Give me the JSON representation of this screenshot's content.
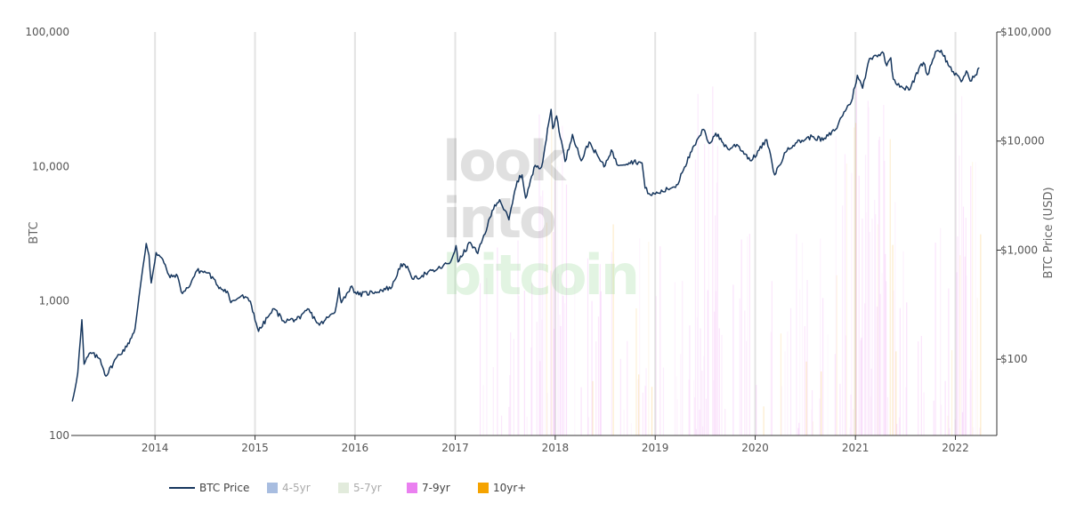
{
  "chart_data": {
    "type": "line",
    "title": "",
    "watermark": [
      "look",
      "into",
      "bitcoin"
    ],
    "left_axis": {
      "label": "BTC",
      "scale": "log",
      "range": [
        100,
        100000
      ],
      "ticks": [
        {
          "value": 100,
          "label": "100"
        },
        {
          "value": 1000,
          "label": "1,000"
        },
        {
          "value": 10000,
          "label": "10,000"
        },
        {
          "value": 100000,
          "label": "100,000"
        }
      ]
    },
    "right_axis": {
      "label": "BTC Price (USD)",
      "scale": "log",
      "range": [
        20,
        100000
      ],
      "ticks": [
        {
          "value": 100,
          "label": "$100"
        },
        {
          "value": 1000,
          "label": "$1,000"
        },
        {
          "value": 10000,
          "label": "$10,000"
        },
        {
          "value": 100000,
          "label": "$100,000"
        }
      ]
    },
    "x_axis": {
      "type": "date",
      "range": [
        "2013-03-01",
        "2022-06-01"
      ],
      "ticks": [
        "2014",
        "2015",
        "2016",
        "2017",
        "2018",
        "2019",
        "2020",
        "2021",
        "2022"
      ],
      "grid": true
    },
    "legend": {
      "placement": "bottom",
      "items": [
        {
          "name": "BTC Price",
          "type": "line",
          "color": "#17375e",
          "active": true
        },
        {
          "name": "4-5yr",
          "type": "box",
          "color": "#a8bde0",
          "active": false
        },
        {
          "name": "5-7yr",
          "type": "box",
          "color": "#e2ebdc",
          "active": false
        },
        {
          "name": "7-9yr",
          "type": "box",
          "color": "#ea80f0",
          "active": true
        },
        {
          "name": "10yr+",
          "type": "box",
          "color": "#f5a300",
          "active": true
        }
      ]
    },
    "series": [
      {
        "name": "BTC Price",
        "axis": "right",
        "color": "#17375e",
        "points": [
          [
            "2013-03-05",
            41
          ],
          [
            "2013-03-25",
            75
          ],
          [
            "2013-04-09",
            230
          ],
          [
            "2013-04-17",
            90
          ],
          [
            "2013-05-10",
            115
          ],
          [
            "2013-06-15",
            100
          ],
          [
            "2013-07-06",
            70
          ],
          [
            "2013-08-15",
            105
          ],
          [
            "2013-09-20",
            130
          ],
          [
            "2013-10-20",
            190
          ],
          [
            "2013-11-18",
            700
          ],
          [
            "2013-11-30",
            1150
          ],
          [
            "2013-12-10",
            900
          ],
          [
            "2013-12-18",
            500
          ],
          [
            "2014-01-05",
            950
          ],
          [
            "2014-01-25",
            850
          ],
          [
            "2014-02-25",
            560
          ],
          [
            "2014-03-20",
            600
          ],
          [
            "2014-04-11",
            400
          ],
          [
            "2014-05-01",
            450
          ],
          [
            "2014-06-03",
            650
          ],
          [
            "2014-07-15",
            620
          ],
          [
            "2014-08-18",
            470
          ],
          [
            "2014-09-22",
            420
          ],
          [
            "2014-10-05",
            330
          ],
          [
            "2014-11-12",
            380
          ],
          [
            "2014-12-15",
            340
          ],
          [
            "2015-01-14",
            180
          ],
          [
            "2015-02-15",
            240
          ],
          [
            "2015-03-12",
            290
          ],
          [
            "2015-04-15",
            225
          ],
          [
            "2015-06-15",
            235
          ],
          [
            "2015-07-12",
            290
          ],
          [
            "2015-08-24",
            205
          ],
          [
            "2015-09-15",
            230
          ],
          [
            "2015-10-20",
            270
          ],
          [
            "2015-11-04",
            450
          ],
          [
            "2015-11-12",
            330
          ],
          [
            "2015-12-16",
            460
          ],
          [
            "2016-01-15",
            390
          ],
          [
            "2016-03-15",
            415
          ],
          [
            "2016-05-15",
            460
          ],
          [
            "2016-06-17",
            750
          ],
          [
            "2016-07-15",
            660
          ],
          [
            "2016-08-02",
            540
          ],
          [
            "2016-09-15",
            610
          ],
          [
            "2016-10-25",
            660
          ],
          [
            "2016-12-15",
            780
          ],
          [
            "2017-01-04",
            1100
          ],
          [
            "2017-01-11",
            780
          ],
          [
            "2017-02-25",
            1180
          ],
          [
            "2017-03-24",
            930
          ],
          [
            "2017-05-25",
            2600
          ],
          [
            "2017-06-12",
            2900
          ],
          [
            "2017-07-16",
            1900
          ],
          [
            "2017-08-15",
            4300
          ],
          [
            "2017-09-02",
            4900
          ],
          [
            "2017-09-15",
            3000
          ],
          [
            "2017-10-20",
            6000
          ],
          [
            "2017-11-12",
            5800
          ],
          [
            "2017-12-17",
            19500
          ],
          [
            "2017-12-23",
            13000
          ],
          [
            "2018-01-06",
            17000
          ],
          [
            "2018-02-06",
            6500
          ],
          [
            "2018-03-05",
            11500
          ],
          [
            "2018-04-06",
            6600
          ],
          [
            "2018-05-05",
            9800
          ],
          [
            "2018-06-28",
            5800
          ],
          [
            "2018-07-25",
            8300
          ],
          [
            "2018-08-14",
            6100
          ],
          [
            "2018-10-15",
            6500
          ],
          [
            "2018-11-14",
            6300
          ],
          [
            "2018-11-25",
            3700
          ],
          [
            "2018-12-15",
            3200
          ],
          [
            "2019-01-28",
            3450
          ],
          [
            "2019-03-25",
            4000
          ],
          [
            "2019-04-05",
            5000
          ],
          [
            "2019-05-14",
            8000
          ],
          [
            "2019-06-26",
            12800
          ],
          [
            "2019-07-18",
            9500
          ],
          [
            "2019-08-10",
            11800
          ],
          [
            "2019-09-24",
            8400
          ],
          [
            "2019-10-26",
            9300
          ],
          [
            "2019-12-18",
            6600
          ],
          [
            "2020-02-12",
            10300
          ],
          [
            "2020-03-12",
            4900
          ],
          [
            "2020-04-30",
            8700
          ],
          [
            "2020-06-01",
            9700
          ],
          [
            "2020-07-27",
            11000
          ],
          [
            "2020-09-05",
            10200
          ],
          [
            "2020-10-21",
            12800
          ],
          [
            "2020-11-20",
            18500
          ],
          [
            "2020-12-17",
            23000
          ],
          [
            "2021-01-08",
            40000
          ],
          [
            "2021-01-27",
            30500
          ],
          [
            "2021-02-21",
            57000
          ],
          [
            "2021-03-13",
            61000
          ],
          [
            "2021-04-14",
            63500
          ],
          [
            "2021-04-25",
            49000
          ],
          [
            "2021-05-10",
            58000
          ],
          [
            "2021-05-19",
            37000
          ],
          [
            "2021-06-22",
            31000
          ],
          [
            "2021-07-20",
            30000
          ],
          [
            "2021-08-25",
            49000
          ],
          [
            "2021-09-06",
            52500
          ],
          [
            "2021-09-21",
            40500
          ],
          [
            "2021-10-20",
            66000
          ],
          [
            "2021-11-10",
            68000
          ],
          [
            "2021-12-10",
            48000
          ],
          [
            "2022-01-22",
            35000
          ],
          [
            "2022-02-10",
            44000
          ],
          [
            "2022-02-24",
            35500
          ],
          [
            "2022-03-10",
            38500
          ],
          [
            "2022-03-29",
            47000
          ]
        ]
      },
      {
        "name": "7-9yr",
        "axis": "left",
        "color": "#ea80f0",
        "style": "faint daily bars",
        "peak_approx": 60000
      },
      {
        "name": "10yr+",
        "axis": "left",
        "color": "#f5a300",
        "style": "faint daily bars",
        "peak_approx": 15000
      }
    ]
  }
}
